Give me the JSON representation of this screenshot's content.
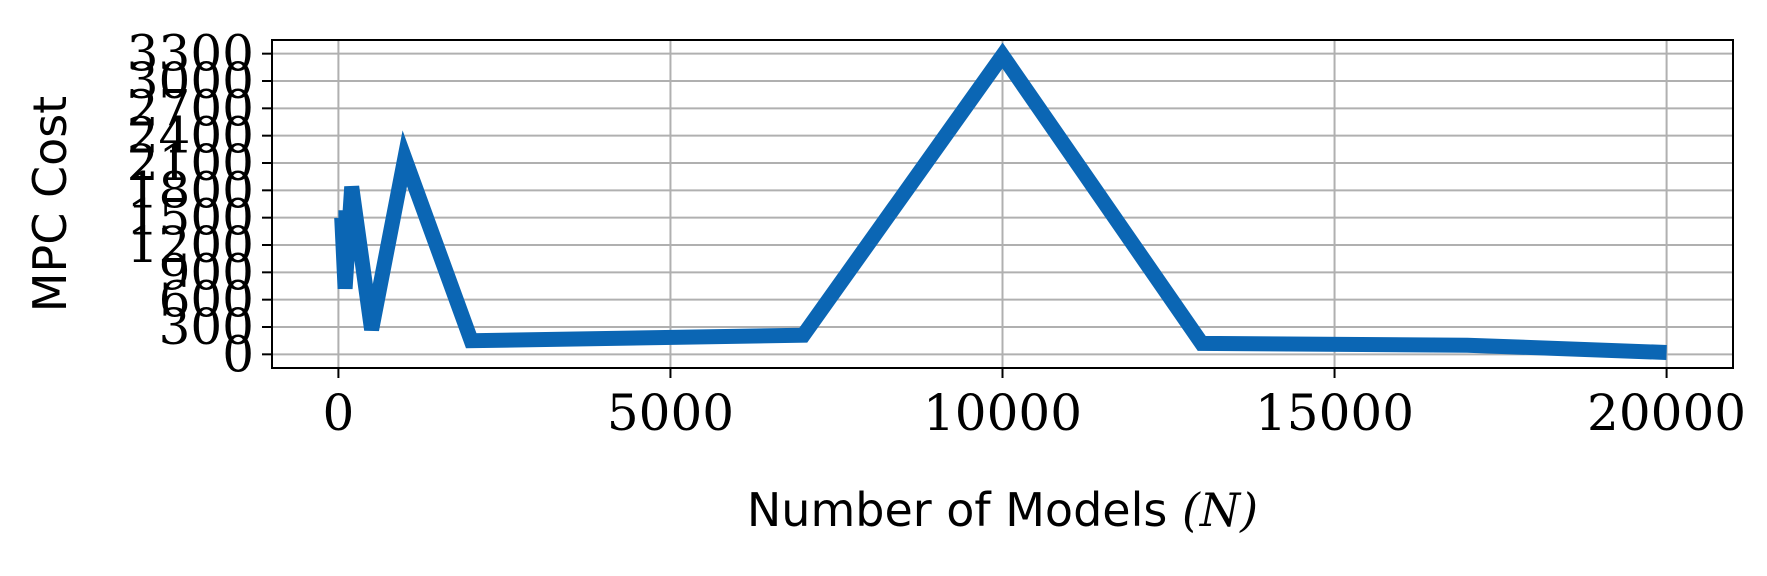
{
  "chart_data": {
    "type": "line",
    "title": "",
    "xlabel_main": "Number of Models ",
    "xlabel_var": "(N)",
    "ylabel": "MPC Cost",
    "xlim": [
      -1000,
      21000
    ],
    "ylim": [
      -150,
      3450
    ],
    "x_ticks": [
      0,
      5000,
      10000,
      15000,
      20000
    ],
    "x_tick_labels": [
      "0",
      "5000",
      "10000",
      "15000",
      "20000"
    ],
    "y_ticks": [
      0,
      300,
      600,
      900,
      1200,
      1500,
      1800,
      2100,
      2400,
      2700,
      3000,
      3300
    ],
    "y_tick_labels": [
      "0",
      "300",
      "600",
      "900",
      "1200",
      "1500",
      "1800",
      "2100",
      "2400",
      "2700",
      "3000",
      "3300"
    ],
    "grid": true,
    "series": [
      {
        "color": "#0b66b4",
        "x": [
          0,
          50,
          100,
          200,
          500,
          1000,
          2000,
          7000,
          10000,
          13000,
          17000,
          20000
        ],
        "y": [
          1500,
          1500,
          720,
          1840,
          270,
          2150,
          150,
          210,
          3280,
          120,
          100,
          20
        ]
      }
    ]
  }
}
